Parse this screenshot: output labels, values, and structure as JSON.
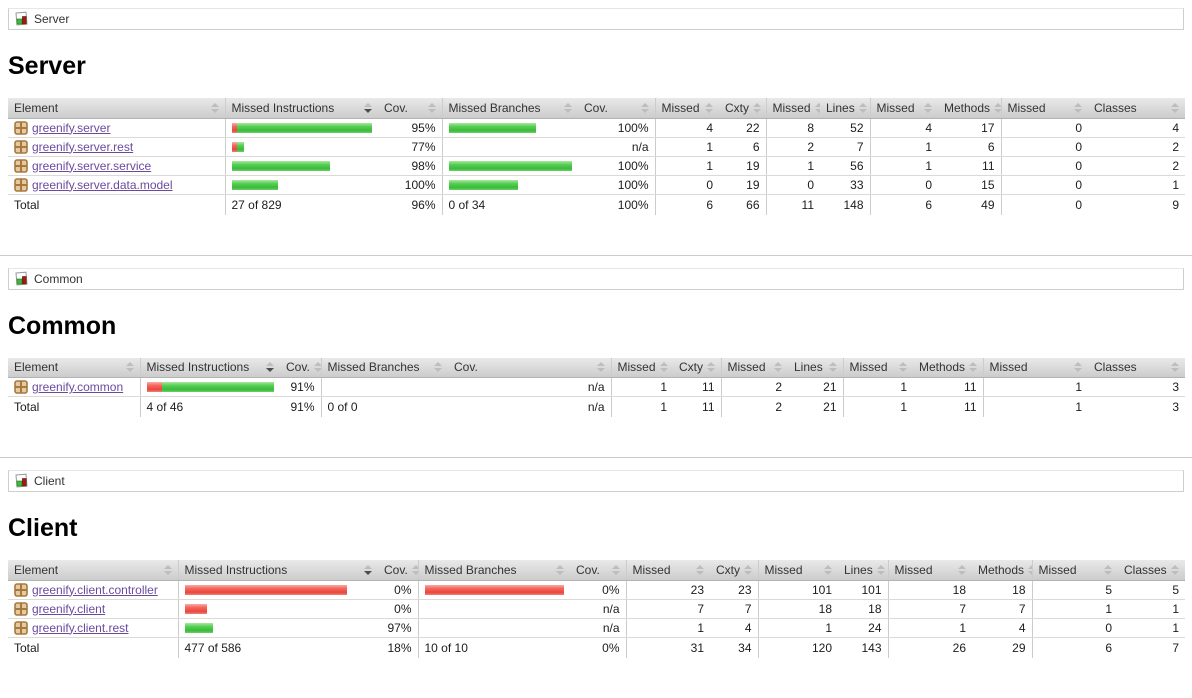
{
  "colors": {
    "bar_green": "#4ecb4e",
    "bar_red": "#f25b52",
    "link_purple": "#6b4a9e",
    "header_gray": "#d9d9d9"
  },
  "sections": [
    {
      "id": "server",
      "breadcrumb": {
        "label": "Server",
        "icon": "group-icon"
      },
      "title": "Server",
      "headers": [
        {
          "label": "Element",
          "sort": "inactive"
        },
        {
          "label": "Missed Instructions",
          "sort": "desc"
        },
        {
          "label": "Cov.",
          "sort": "inactive"
        },
        {
          "label": "Missed Branches",
          "sort": "inactive"
        },
        {
          "label": "Cov.",
          "sort": "inactive"
        },
        {
          "label": "Missed",
          "sort": "inactive"
        },
        {
          "label": "Cxty",
          "sort": "inactive"
        },
        {
          "label": "Missed",
          "sort": "inactive"
        },
        {
          "label": "Lines",
          "sort": "inactive"
        },
        {
          "label": "Missed",
          "sort": "inactive"
        },
        {
          "label": "Methods",
          "sort": "inactive"
        },
        {
          "label": "Missed",
          "sort": "inactive"
        },
        {
          "label": "Classes",
          "sort": "inactive"
        }
      ],
      "rows": [
        {
          "element": "greenify.server",
          "instr_bar": {
            "red": 6,
            "green": 137
          },
          "instr_cov": "95%",
          "branch_bar": {
            "red": 0,
            "green": 87
          },
          "branch_cov": "100%",
          "counters": [
            "4",
            "22",
            "8",
            "52",
            "4",
            "17",
            "0",
            "4"
          ]
        },
        {
          "element": "greenify.server.rest",
          "instr_bar": {
            "red": 5,
            "green": 7
          },
          "instr_cov": "77%",
          "branch_bar": {
            "red": 0,
            "green": 0
          },
          "branch_cov": "n/a",
          "counters": [
            "1",
            "6",
            "2",
            "7",
            "1",
            "6",
            "0",
            "2"
          ]
        },
        {
          "element": "greenify.server.service",
          "instr_bar": {
            "red": 0,
            "green": 98
          },
          "instr_cov": "98%",
          "branch_bar": {
            "red": 0,
            "green": 132
          },
          "branch_cov": "100%",
          "counters": [
            "1",
            "19",
            "1",
            "56",
            "1",
            "11",
            "0",
            "2"
          ]
        },
        {
          "element": "greenify.server.data.model",
          "instr_bar": {
            "red": 0,
            "green": 46
          },
          "instr_cov": "100%",
          "branch_bar": {
            "red": 0,
            "green": 69
          },
          "branch_cov": "100%",
          "counters": [
            "0",
            "19",
            "0",
            "33",
            "0",
            "15",
            "0",
            "1"
          ]
        }
      ],
      "total": {
        "label": "Total",
        "instr": "27 of 829",
        "instr_cov": "96%",
        "branch": "0 of 34",
        "branch_cov": "100%",
        "counters": [
          "6",
          "66",
          "11",
          "148",
          "6",
          "49",
          "0",
          "9"
        ]
      }
    },
    {
      "id": "common",
      "breadcrumb": {
        "label": "Common",
        "icon": "group-icon"
      },
      "title": "Common",
      "headers": [
        {
          "label": "Element",
          "sort": "inactive"
        },
        {
          "label": "Missed Instructions",
          "sort": "desc"
        },
        {
          "label": "Cov.",
          "sort": "inactive"
        },
        {
          "label": "Missed Branches",
          "sort": "inactive"
        },
        {
          "label": "Cov.",
          "sort": "inactive"
        },
        {
          "label": "Missed",
          "sort": "inactive"
        },
        {
          "label": "Cxty",
          "sort": "inactive"
        },
        {
          "label": "Missed",
          "sort": "inactive"
        },
        {
          "label": "Lines",
          "sort": "inactive"
        },
        {
          "label": "Missed",
          "sort": "inactive"
        },
        {
          "label": "Methods",
          "sort": "inactive"
        },
        {
          "label": "Missed",
          "sort": "inactive"
        },
        {
          "label": "Classes",
          "sort": "inactive"
        }
      ],
      "rows": [
        {
          "element": "greenify.common",
          "instr_bar": {
            "red": 15,
            "green": 112
          },
          "instr_cov": "91%",
          "branch_bar": {
            "red": 0,
            "green": 0
          },
          "branch_cov": "n/a",
          "counters": [
            "1",
            "11",
            "2",
            "21",
            "1",
            "11",
            "1",
            "3"
          ]
        }
      ],
      "total": {
        "label": "Total",
        "instr": "4 of 46",
        "instr_cov": "91%",
        "branch": "0 of 0",
        "branch_cov": "n/a",
        "counters": [
          "1",
          "11",
          "2",
          "21",
          "1",
          "11",
          "1",
          "3"
        ]
      }
    },
    {
      "id": "client",
      "breadcrumb": {
        "label": "Client",
        "icon": "group-icon"
      },
      "title": "Client",
      "headers": [
        {
          "label": "Element",
          "sort": "inactive"
        },
        {
          "label": "Missed Instructions",
          "sort": "desc"
        },
        {
          "label": "Cov.",
          "sort": "inactive"
        },
        {
          "label": "Missed Branches",
          "sort": "inactive"
        },
        {
          "label": "Cov.",
          "sort": "inactive"
        },
        {
          "label": "Missed",
          "sort": "inactive"
        },
        {
          "label": "Cxty",
          "sort": "inactive"
        },
        {
          "label": "Missed",
          "sort": "inactive"
        },
        {
          "label": "Lines",
          "sort": "inactive"
        },
        {
          "label": "Missed",
          "sort": "inactive"
        },
        {
          "label": "Methods",
          "sort": "inactive"
        },
        {
          "label": "Missed",
          "sort": "inactive"
        },
        {
          "label": "Classes",
          "sort": "inactive"
        }
      ],
      "rows": [
        {
          "element": "greenify.client.controller",
          "instr_bar": {
            "red": 162,
            "green": 0
          },
          "instr_cov": "0%",
          "branch_bar": {
            "red": 147,
            "green": 0
          },
          "branch_cov": "0%",
          "counters": [
            "23",
            "23",
            "101",
            "101",
            "18",
            "18",
            "5",
            "5"
          ]
        },
        {
          "element": "greenify.client",
          "instr_bar": {
            "red": 22,
            "green": 0
          },
          "instr_cov": "0%",
          "branch_bar": {
            "red": 0,
            "green": 0
          },
          "branch_cov": "n/a",
          "counters": [
            "7",
            "7",
            "18",
            "18",
            "7",
            "7",
            "1",
            "1"
          ]
        },
        {
          "element": "greenify.client.rest",
          "instr_bar": {
            "red": 0,
            "green": 28
          },
          "instr_cov": "97%",
          "branch_bar": {
            "red": 0,
            "green": 0
          },
          "branch_cov": "n/a",
          "counters": [
            "1",
            "4",
            "1",
            "24",
            "1",
            "4",
            "0",
            "1"
          ]
        }
      ],
      "total": {
        "label": "Total",
        "instr": "477 of 586",
        "instr_cov": "18%",
        "branch": "10 of 10",
        "branch_cov": "0%",
        "counters": [
          "31",
          "34",
          "120",
          "143",
          "26",
          "29",
          "6",
          "7"
        ]
      }
    }
  ]
}
